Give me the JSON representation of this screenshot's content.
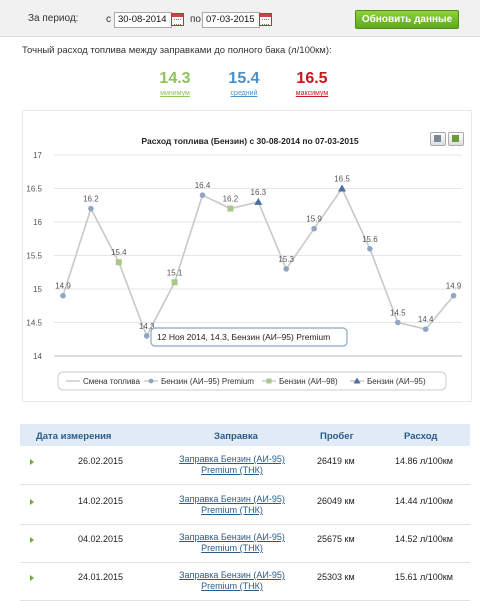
{
  "filter": {
    "period_label": "За период:",
    "from_label": "с",
    "from_date": "30-08-2014",
    "to_label": "по",
    "to_date": "07-03-2015",
    "update_button": "Обновить данные"
  },
  "summary": {
    "description": "Точный расход топлива между заправками до полного бака (л/100км):",
    "min_value": "14.3",
    "min_label": "минимум",
    "avg_value": "15.4",
    "avg_label": "средний",
    "max_value": "16.5",
    "max_label": "максимум",
    "colors": {
      "min": "#8dc35a",
      "avg": "#4a90c8",
      "max": "#c8161d"
    }
  },
  "tooltip": "12 Ноя 2014, 14.3, Бензин (АИ–95) Premium",
  "chart_data": {
    "type": "line",
    "title": "Расход топлива (Бензин) с 30-08-2014 по 07-03-2015",
    "ylim": [
      14,
      17
    ],
    "y_ticks": [
      "17",
      "16.5",
      "16",
      "15.5",
      "15",
      "14.5",
      "14"
    ],
    "grid": true,
    "legend_position": "bottom",
    "x": [
      0,
      1,
      2,
      3,
      4,
      5,
      6,
      7,
      8,
      9,
      10,
      11,
      12,
      13,
      14
    ],
    "values": [
      14.9,
      16.2,
      15.4,
      14.3,
      15.1,
      16.4,
      16.2,
      16.3,
      15.3,
      15.9,
      16.5,
      15.6,
      14.5,
      14.4,
      14.9
    ],
    "labels": [
      "14.9",
      "16.2",
      "15.4",
      "14.3",
      "15.1",
      "16.4",
      "16.2",
      "16.3",
      "15.3",
      "15.9",
      "16.5",
      "15.6",
      "14.5",
      "14.4",
      "14.9"
    ],
    "markers": [
      "p",
      "p",
      "98",
      "p",
      "98",
      "p",
      "98",
      "95",
      "p",
      "p",
      "95",
      "p",
      "p",
      "p",
      "p"
    ],
    "line_color": "#c8c8c8",
    "series": [
      {
        "name": "Смена топлива",
        "marker": "line",
        "color": "#c8c8c8"
      },
      {
        "name": "Бензин (АИ–95) Premium",
        "marker": "circle",
        "color": "#8ea5c4"
      },
      {
        "name": "Бензин (АИ–98)",
        "marker": "square",
        "color": "#a8c88a"
      },
      {
        "name": "Бензин (АИ–95)",
        "marker": "triangle",
        "color": "#4f6e99"
      }
    ]
  },
  "table": {
    "headers": [
      "Дата измерения",
      "Заправка",
      "Пробег",
      "Расход"
    ],
    "rows": [
      {
        "date": "26.02.2015",
        "station_line1": "Заправка Бензин (АИ-95)",
        "station_line2": "Premium (ТНК)",
        "mileage": "26419 км",
        "consumption": "14.86 л/100км"
      },
      {
        "date": "14.02.2015",
        "station_line1": "Заправка Бензин (АИ-95)",
        "station_line2": "Premium (ТНК)",
        "mileage": "26049 км",
        "consumption": "14.44 л/100км"
      },
      {
        "date": "04.02.2015",
        "station_line1": "Заправка Бензин (АИ-95)",
        "station_line2": "Premium (ТНК)",
        "mileage": "25675 км",
        "consumption": "14.52 л/100км"
      },
      {
        "date": "24.01.2015",
        "station_line1": "Заправка Бензин (АИ-95)",
        "station_line2": "Premium (ТНК)",
        "mileage": "25303 км",
        "consumption": "15.61 л/100км"
      }
    ]
  }
}
